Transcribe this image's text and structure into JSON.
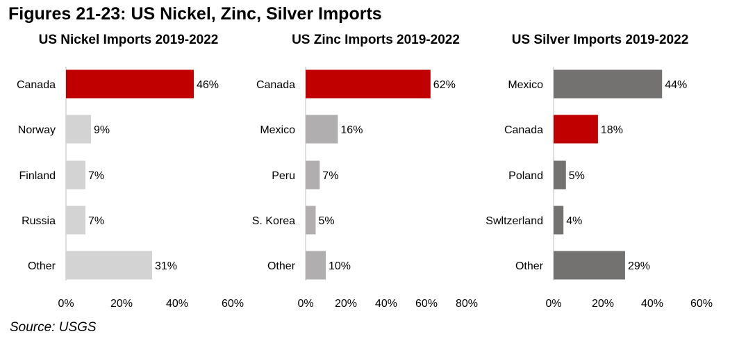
{
  "figure_title": "Figures 21-23: US Nickel, Zinc, Silver Imports",
  "source": "Source: USGS",
  "colors": {
    "highlight": "#c00000",
    "nickel_other": "#d3d3d3",
    "zinc_other": "#b0aeae",
    "silver_other": "#747171",
    "axis": "#bfbfbf"
  },
  "chart_data": [
    {
      "type": "bar",
      "orientation": "horizontal",
      "title": "US Nickel Imports 2019-2022",
      "categories": [
        "Canada",
        "Norway",
        "Finland",
        "Russia",
        "Other"
      ],
      "values": [
        46,
        9,
        7,
        7,
        31
      ],
      "data_labels": [
        "46%",
        "9%",
        "7%",
        "7%",
        "31%"
      ],
      "highlight": "Canada",
      "xlim": [
        0,
        60
      ],
      "ticks": [
        0,
        20,
        40,
        60
      ],
      "tick_labels": [
        "0%",
        "20%",
        "40%",
        "60%"
      ],
      "bar_color": "#d3d3d3"
    },
    {
      "type": "bar",
      "orientation": "horizontal",
      "title": "US Zinc Imports 2019-2022",
      "categories": [
        "Canada",
        "Mexico",
        "Peru",
        "S. Korea",
        "Other"
      ],
      "values": [
        62,
        16,
        7,
        5,
        10
      ],
      "data_labels": [
        "62%",
        "16%",
        "7%",
        "5%",
        "10%"
      ],
      "highlight": "Canada",
      "xlim": [
        0,
        80
      ],
      "ticks": [
        0,
        20,
        40,
        60,
        80
      ],
      "tick_labels": [
        "0%",
        "20%",
        "40%",
        "60%",
        "80%"
      ],
      "bar_color": "#b0aeae"
    },
    {
      "type": "bar",
      "orientation": "horizontal",
      "title": "US Silver Imports 2019-2022",
      "categories": [
        "Mexico",
        "Canada",
        "Poland",
        "Swltzerland",
        "Other"
      ],
      "values": [
        44,
        18,
        5,
        4,
        29
      ],
      "data_labels": [
        "44%",
        "18%",
        "5%",
        "4%",
        "29%"
      ],
      "highlight": "Canada",
      "xlim": [
        0,
        60
      ],
      "ticks": [
        0,
        20,
        40,
        60
      ],
      "tick_labels": [
        "0%",
        "20%",
        "40%",
        "60%"
      ],
      "bar_color": "#747171"
    }
  ]
}
